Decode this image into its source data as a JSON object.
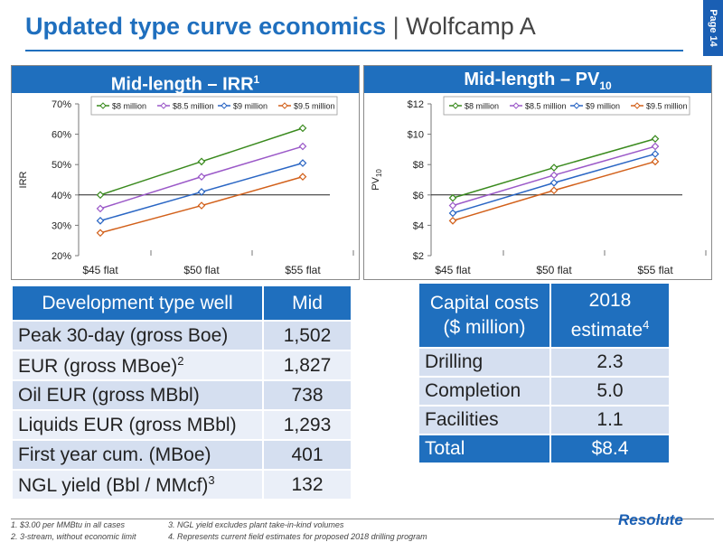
{
  "header": {
    "title_bold": "Updated type curve economics",
    "separator": "|",
    "title_sub": "Wolfcamp A",
    "page_label": "Page 14"
  },
  "panels": {
    "irr": {
      "title": "Mid-length – IRR",
      "sup": "1"
    },
    "pv": {
      "title": "Mid-length – PV",
      "sub": "10"
    }
  },
  "chart_data": [
    {
      "type": "line",
      "categories": [
        "$45 flat",
        "$50 flat",
        "$55 flat"
      ],
      "ylabel": "IRR",
      "ylim": [
        20,
        70
      ],
      "yticks": [
        "20%",
        "30%",
        "40%",
        "50%",
        "60%",
        "70%"
      ],
      "baseline": 40,
      "legend": "top",
      "series": [
        {
          "name": "$8 million",
          "color": "#3a8a1e",
          "values": [
            40,
            51,
            62
          ]
        },
        {
          "name": "$8.5 million",
          "color": "#9b59c8",
          "values": [
            35.5,
            46,
            56
          ]
        },
        {
          "name": "$9 million",
          "color": "#2a66c4",
          "values": [
            31.5,
            41,
            50.5
          ]
        },
        {
          "name": "$9.5 million",
          "color": "#d2601a",
          "values": [
            27.5,
            36.5,
            46
          ]
        }
      ]
    },
    {
      "type": "line",
      "categories": [
        "$45 flat",
        "$50 flat",
        "$55 flat"
      ],
      "ylabel": "PV",
      "ylabel_sub": "10",
      "ylim": [
        2,
        12
      ],
      "yticks": [
        "$2",
        "$4",
        "$6",
        "$8",
        "$10",
        "$12"
      ],
      "baseline": 6,
      "legend": "top",
      "series": [
        {
          "name": "$8 million",
          "color": "#3a8a1e",
          "values": [
            5.8,
            7.8,
            9.7
          ]
        },
        {
          "name": "$8.5 million",
          "color": "#9b59c8",
          "values": [
            5.3,
            7.3,
            9.2
          ]
        },
        {
          "name": "$9 million",
          "color": "#2a66c4",
          "values": [
            4.8,
            6.8,
            8.7
          ]
        },
        {
          "name": "$9.5 million",
          "color": "#d2601a",
          "values": [
            4.3,
            6.3,
            8.2
          ]
        }
      ]
    }
  ],
  "dev_table": {
    "header": [
      "Development type well",
      "Mid"
    ],
    "rows": [
      {
        "label": "Peak 30-day (gross Boe)",
        "sup": "",
        "value": "1,502"
      },
      {
        "label": "EUR (gross MBoe)",
        "sup": "2",
        "value": "1,827"
      },
      {
        "label": "Oil EUR (gross MBbl)",
        "sup": "",
        "value": "738"
      },
      {
        "label": "Liquids EUR (gross MBbl)",
        "sup": "",
        "value": "1,293"
      },
      {
        "label": "First year cum. (MBoe)",
        "sup": "",
        "value": "401"
      },
      {
        "label": "NGL yield (Bbl / MMcf)",
        "sup": "3",
        "value": "132"
      }
    ]
  },
  "cap_table": {
    "header_left": [
      "Capital costs",
      "($ million)"
    ],
    "header_right": [
      "2018",
      "estimate"
    ],
    "header_right_sup": "4",
    "rows": [
      {
        "label": "Drilling",
        "value": "2.3"
      },
      {
        "label": "Completion",
        "value": "5.0"
      },
      {
        "label": "Facilities",
        "value": "1.1"
      }
    ],
    "total": {
      "label": "Total",
      "value": "$8.4"
    }
  },
  "footnotes": [
    "1.    $3.00 per MMBtu in all cases",
    "2.    3-stream, without economic limit",
    "3.    NGL yield excludes plant take-in-kind volumes",
    "4.    Represents current field estimates for proposed 2018 drilling program"
  ],
  "logo": "Resolute",
  "colors": {
    "brand": "#1f6fbe",
    "row_dark": "#d5dff0",
    "row_light": "#eaeff8"
  }
}
